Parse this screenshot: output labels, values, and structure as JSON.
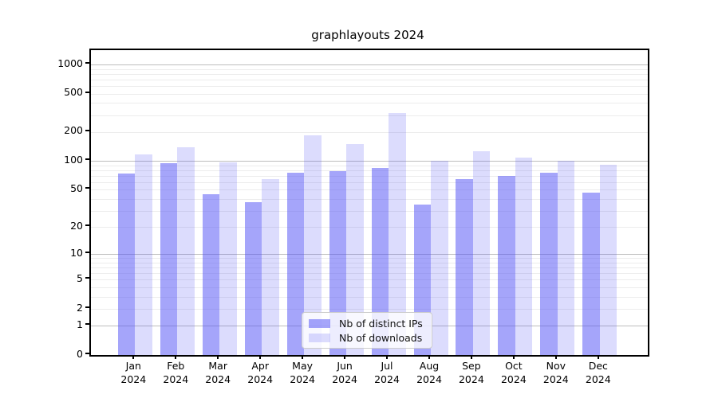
{
  "title": "graphlayouts 2024",
  "chart_data": {
    "type": "bar",
    "title": "graphlayouts 2024",
    "categories": [
      "Jan",
      "Feb",
      "Mar",
      "Apr",
      "May",
      "Jun",
      "Jul",
      "Aug",
      "Sep",
      "Oct",
      "Nov",
      "Dec"
    ],
    "category_year": "2024",
    "series": [
      {
        "name": "Nb of distinct IPs",
        "color": "rgba(82,82,245,0.52)",
        "values": [
          74,
          94,
          45,
          37,
          76,
          79,
          85,
          35,
          65,
          70,
          75,
          47
        ]
      },
      {
        "name": "Nb of downloads",
        "color": "rgba(82,82,245,0.20)",
        "values": [
          118,
          140,
          96,
          65,
          185,
          150,
          315,
          100,
          126,
          108,
          100,
          92
        ]
      }
    ],
    "yscale": "log1p",
    "ylim": [
      0,
      1400
    ],
    "yticks": [
      0,
      1,
      2,
      5,
      10,
      20,
      50,
      100,
      200,
      500,
      1000
    ],
    "grid": {
      "orientation": "horizontal",
      "major_lines_at": [
        1,
        10,
        100,
        1000
      ],
      "minor_lines": "2-9 of each decade",
      "major_color": "#bdbdbd",
      "minor_color": "#ececec"
    },
    "legend": {
      "position": "bottom-center-inside",
      "entries": [
        "Nb of distinct IPs",
        "Nb of downloads"
      ]
    }
  },
  "colors": {
    "axis": "#000000",
    "background": "#ffffff",
    "legend_border": "#cccccc"
  }
}
